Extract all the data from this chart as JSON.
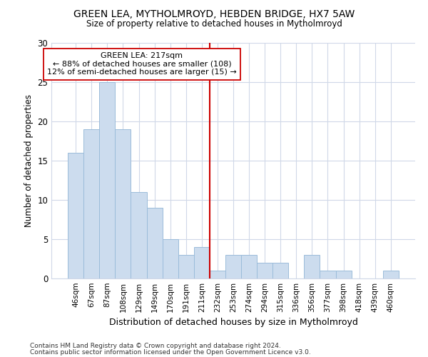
{
  "title": "GREEN LEA, MYTHOLMROYD, HEBDEN BRIDGE, HX7 5AW",
  "subtitle": "Size of property relative to detached houses in Mytholmroyd",
  "xlabel": "Distribution of detached houses by size in Mytholmroyd",
  "ylabel": "Number of detached properties",
  "categories": [
    "46sqm",
    "67sqm",
    "87sqm",
    "108sqm",
    "129sqm",
    "149sqm",
    "170sqm",
    "191sqm",
    "211sqm",
    "232sqm",
    "253sqm",
    "274sqm",
    "294sqm",
    "315sqm",
    "336sqm",
    "356sqm",
    "377sqm",
    "398sqm",
    "418sqm",
    "439sqm",
    "460sqm"
  ],
  "values": [
    16,
    19,
    25,
    19,
    11,
    9,
    5,
    3,
    4,
    1,
    3,
    3,
    2,
    2,
    0,
    3,
    1,
    1,
    0,
    0,
    1
  ],
  "bar_color": "#ccdcee",
  "bar_edge_color": "#9bbcda",
  "grid_color": "#d0d8e8",
  "background_color": "#ffffff",
  "vline_x": 8.5,
  "vline_color": "#cc0000",
  "annotation_text": "GREEN LEA: 217sqm\n← 88% of detached houses are smaller (108)\n12% of semi-detached houses are larger (15) →",
  "annotation_box_color": "#ffffff",
  "annotation_box_edge": "#cc0000",
  "ylim": [
    0,
    30
  ],
  "yticks": [
    0,
    5,
    10,
    15,
    20,
    25,
    30
  ],
  "footer1": "Contains HM Land Registry data © Crown copyright and database right 2024.",
  "footer2": "Contains public sector information licensed under the Open Government Licence v3.0."
}
